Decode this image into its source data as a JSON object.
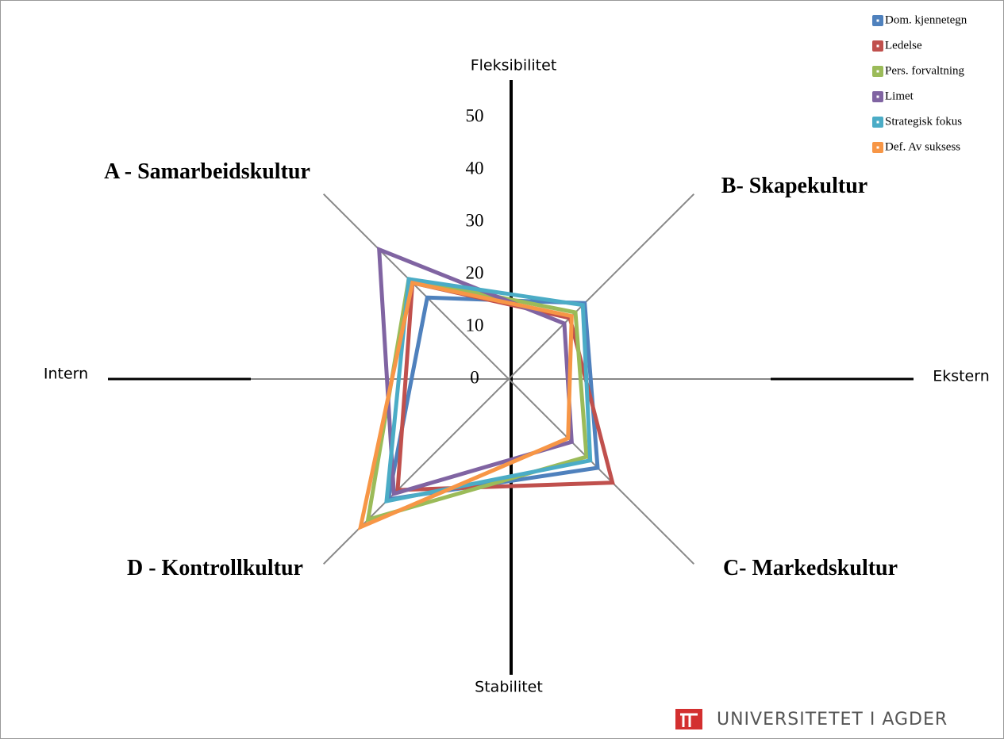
{
  "chart_data": {
    "type": "radar",
    "categories": [
      "A - Samarbeidskultur",
      "B- Skapekultur",
      "C- Markedskultur",
      "D - Kontrollkultur"
    ],
    "series": [
      {
        "name": "Dom. kjennetegn",
        "color": "#4f81bd",
        "values": [
          22,
          20.5,
          24,
          32.5
        ]
      },
      {
        "name": "Ledelse",
        "color": "#c0504d",
        "values": [
          26,
          16.5,
          28,
          30
        ]
      },
      {
        "name": "Pers. forvaltning",
        "color": "#9bbb59",
        "values": [
          27,
          18,
          21,
          38
        ]
      },
      {
        "name": "Limet",
        "color": "#8064a2",
        "values": [
          35,
          15,
          17,
          31
        ]
      },
      {
        "name": "Strategisk fokus",
        "color": "#4bacc6",
        "values": [
          27,
          20,
          22,
          33
        ]
      },
      {
        "name": "Def. Av suksess",
        "color": "#f79646",
        "values": [
          26,
          17,
          16,
          40
        ]
      }
    ],
    "rlim": [
      0,
      50
    ],
    "rticks": [
      0,
      10,
      20,
      30,
      40,
      50
    ],
    "axis_labels": {
      "top": "Fleksibilitet",
      "bottom": "Stabilitet",
      "left": "Intern",
      "right": "Ekstern"
    },
    "logo": "UNIVERSITETET I AGDER",
    "legend": "top-right"
  }
}
